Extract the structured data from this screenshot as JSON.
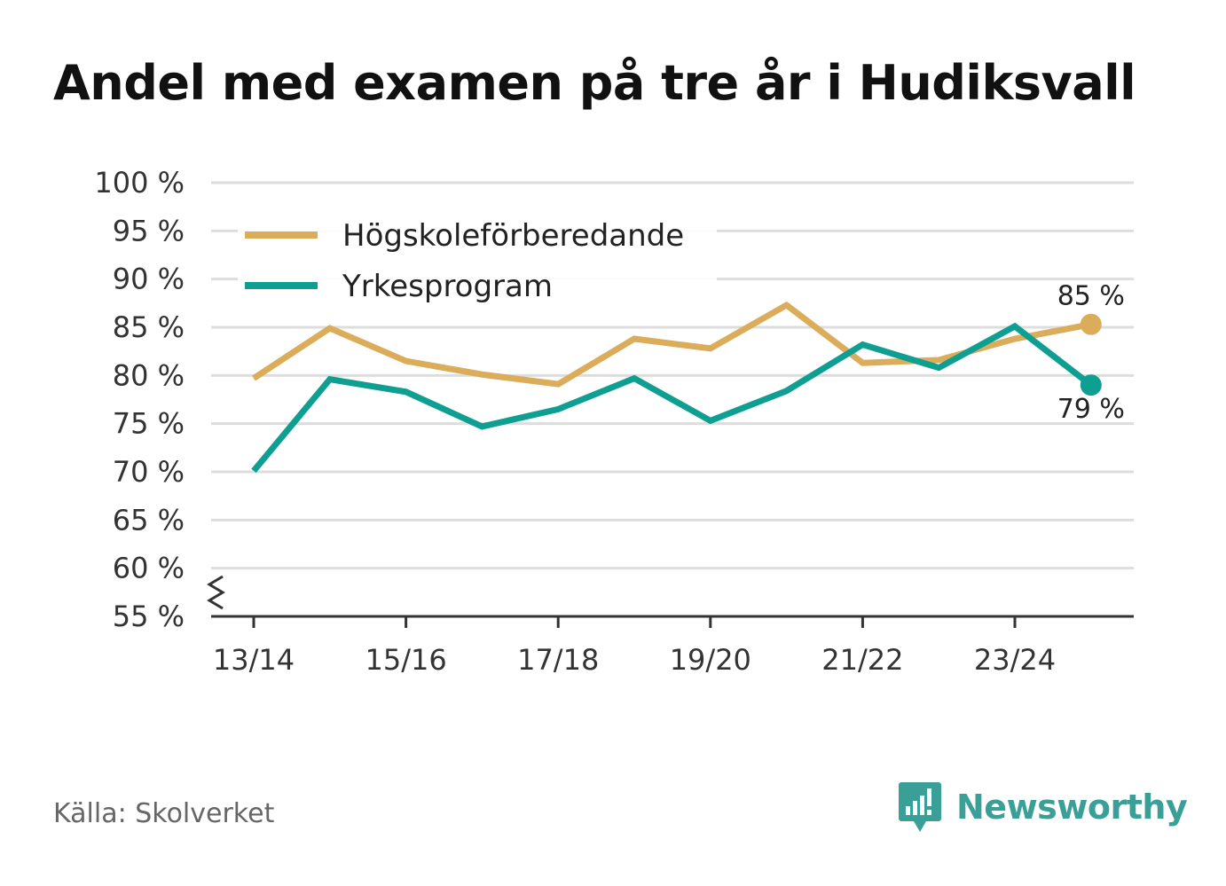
{
  "chart_data": {
    "type": "line",
    "title": "Andel med examen på tre år i Hudiksvall",
    "xlabel": "",
    "ylabel": "",
    "ylim": [
      55,
      100
    ],
    "y_ticks": [
      55,
      60,
      65,
      70,
      75,
      80,
      85,
      90,
      95,
      100
    ],
    "y_tick_suffix": " %",
    "y_axis_break": true,
    "grid": true,
    "legend_position": "top-left",
    "x": [
      "13/14",
      "14/15",
      "15/16",
      "16/17",
      "17/18",
      "18/19",
      "19/20",
      "20/21",
      "21/22",
      "22/23",
      "23/24",
      "24/25"
    ],
    "x_tick_labels": [
      "13/14",
      "15/16",
      "17/18",
      "19/20",
      "21/22",
      "23/24"
    ],
    "series": [
      {
        "name": "Högskoleförberedande",
        "color": "#dbad5b",
        "values": [
          79.7,
          84.9,
          81.5,
          80.1,
          79.1,
          83.8,
          82.8,
          87.3,
          81.3,
          81.6,
          83.8,
          85.3
        ],
        "end_label": "85 %"
      },
      {
        "name": "Yrkesprogram",
        "color": "#0f9e92",
        "values": [
          70.1,
          79.6,
          78.3,
          74.7,
          76.5,
          79.7,
          75.3,
          78.4,
          83.2,
          80.8,
          85.1,
          79.0
        ],
        "end_label": "79 %"
      }
    ]
  },
  "source": "Källa: Skolverket",
  "brand": {
    "name": "Newsworthy",
    "color": "#3a9f97"
  }
}
